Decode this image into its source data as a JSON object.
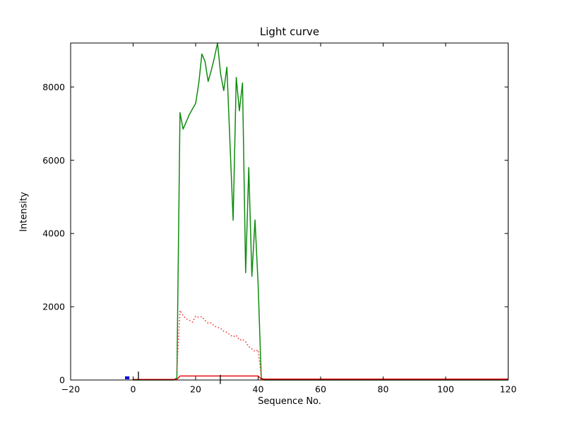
{
  "chart_data": {
    "type": "line",
    "title": "Light curve",
    "xlabel": "Sequence No.",
    "ylabel": "Intensity",
    "xlim": [
      -20,
      120
    ],
    "ylim": [
      0,
      9200
    ],
    "grid": false,
    "legend": "none",
    "xticks": [
      -20,
      0,
      20,
      40,
      60,
      80,
      100,
      120
    ],
    "xtick_labels": [
      "−20",
      "0",
      "20",
      "40",
      "60",
      "80",
      "100",
      "120"
    ],
    "yticks": [
      0,
      2000,
      4000,
      6000,
      8000
    ],
    "ytick_labels": [
      "0",
      "2000",
      "4000",
      "6000",
      "8000"
    ],
    "axis_color": "#000000",
    "series": [
      {
        "name": "main-flux-green-line",
        "color": "#0f8c0f",
        "style": "solid",
        "width": 1.5,
        "x": [
          0,
          13,
          14,
          15,
          16,
          17,
          18,
          19,
          20,
          21,
          22,
          23,
          24,
          25,
          26,
          27,
          28,
          29,
          30,
          32,
          33,
          34,
          35,
          36,
          37,
          38,
          39,
          40,
          41,
          42,
          120
        ],
        "y": [
          0,
          0,
          60,
          7300,
          6850,
          7050,
          7250,
          7400,
          7550,
          8100,
          8900,
          8700,
          8150,
          8450,
          8800,
          9200,
          8350,
          7900,
          8540,
          4360,
          8260,
          7350,
          8110,
          2930,
          5800,
          2830,
          4370,
          2600,
          60,
          0,
          0
        ]
      },
      {
        "name": "background-red-dotted-line",
        "color": "#ee4747",
        "style": "dotted",
        "width": 1.7,
        "x": [
          14,
          15,
          16,
          17,
          18,
          19,
          20,
          21,
          22,
          23,
          24,
          25,
          26,
          27,
          28,
          29,
          30,
          31,
          32,
          33,
          34,
          35,
          36,
          37,
          38,
          39,
          40,
          40.6,
          41
        ],
        "y": [
          250,
          1900,
          1760,
          1670,
          1630,
          1580,
          1740,
          1710,
          1730,
          1630,
          1550,
          1555,
          1470,
          1440,
          1410,
          1330,
          1300,
          1230,
          1180,
          1220,
          1090,
          1110,
          1040,
          910,
          850,
          780,
          820,
          400,
          80
        ]
      },
      {
        "name": "baseline-red-solid-line",
        "color": "#e60000",
        "style": "solid",
        "width": 1.4,
        "x": [
          0,
          14,
          15,
          40,
          41,
          120
        ],
        "y": [
          15,
          15,
          110,
          110,
          25,
          25
        ]
      },
      {
        "name": "blue-marker-segment",
        "color": "#0000dd",
        "style": "solid",
        "width": 4,
        "x": [
          -2.6,
          -1.2
        ],
        "y": [
          60,
          60
        ]
      },
      {
        "name": "black-spike-left",
        "color": "#000000",
        "style": "solid",
        "width": 1.3,
        "x": [
          1.7,
          1.7
        ],
        "y": [
          0,
          230
        ]
      },
      {
        "name": "black-spike-mid",
        "color": "#000000",
        "style": "solid",
        "width": 1.3,
        "x": [
          27.9,
          27.9
        ],
        "y": [
          -110,
          140
        ]
      }
    ]
  }
}
